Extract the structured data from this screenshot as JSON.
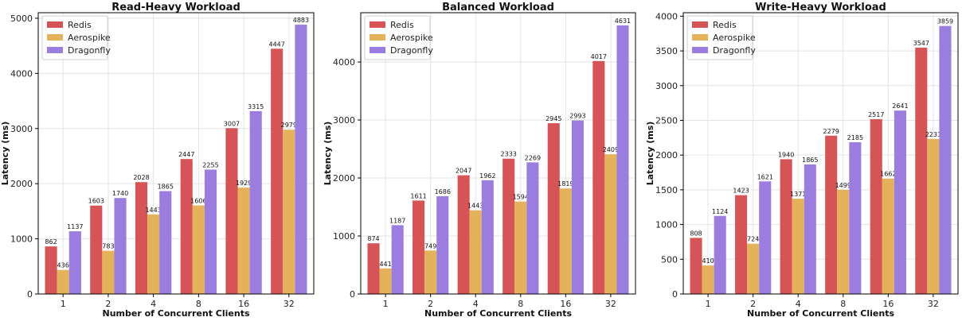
{
  "chart_data": [
    {
      "type": "bar",
      "title": "Read-Heavy Workload",
      "xlabel": "Number of Concurrent Clients",
      "ylabel": "Latency (ms)",
      "categories": [
        "1",
        "2",
        "4",
        "8",
        "16",
        "32"
      ],
      "series": [
        {
          "name": "Redis",
          "values": [
            862,
            1603,
            2028,
            2447,
            3007,
            4447
          ]
        },
        {
          "name": "Aerospike",
          "values": [
            436,
            783,
            1443,
            1606,
            1929,
            2979
          ]
        },
        {
          "name": "Dragonfly",
          "values": [
            1137,
            1740,
            1865,
            2255,
            3315,
            4883
          ]
        }
      ],
      "ylim": [
        0,
        5100
      ],
      "yticks": [
        0,
        1000,
        2000,
        3000,
        4000,
        5000
      ],
      "grid": true,
      "legend": "top-left"
    },
    {
      "type": "bar",
      "title": "Balanced Workload",
      "xlabel": "Number of Concurrent Clients",
      "ylabel": "Latency (ms)",
      "categories": [
        "1",
        "2",
        "4",
        "8",
        "16",
        "32"
      ],
      "series": [
        {
          "name": "Redis",
          "values": [
            874,
            1611,
            2047,
            2333,
            2945,
            4017
          ]
        },
        {
          "name": "Aerospike",
          "values": [
            441,
            749,
            1443,
            1594,
            1819,
            2409
          ]
        },
        {
          "name": "Dragonfly",
          "values": [
            1187,
            1686,
            1962,
            2269,
            2993,
            4631
          ]
        }
      ],
      "ylim": [
        0,
        4850
      ],
      "yticks": [
        0,
        1000,
        2000,
        3000,
        4000
      ],
      "grid": true,
      "legend": "top-left"
    },
    {
      "type": "bar",
      "title": "Write-Heavy Workload",
      "xlabel": "Number of Concurrent Clients",
      "ylabel": "Latency (ms)",
      "categories": [
        "1",
        "2",
        "4",
        "8",
        "16",
        "32"
      ],
      "series": [
        {
          "name": "Redis",
          "values": [
            808,
            1423,
            1940,
            2279,
            2517,
            3547
          ]
        },
        {
          "name": "Aerospike",
          "values": [
            410,
            724,
            1371,
            1499,
            1662,
            2233
          ]
        },
        {
          "name": "Dragonfly",
          "values": [
            1124,
            1621,
            1865,
            2185,
            2641,
            3859
          ]
        }
      ],
      "ylim": [
        0,
        4050
      ],
      "yticks": [
        0,
        500,
        1000,
        1500,
        2000,
        2500,
        3000,
        3500,
        4000
      ],
      "grid": true,
      "legend": "top-left"
    }
  ],
  "colors": {
    "Redis": "#d65455",
    "Aerospike": "#e4b25a",
    "Dragonfly": "#9b7de0"
  }
}
